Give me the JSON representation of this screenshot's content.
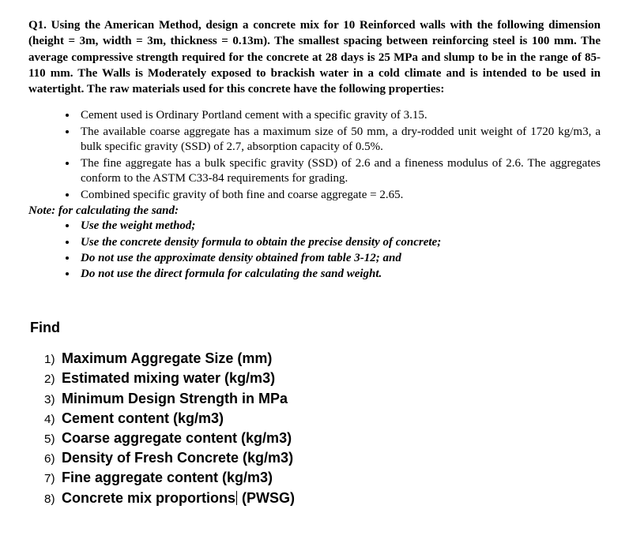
{
  "colors": {
    "background": "#ffffff",
    "text": "#000000"
  },
  "question": {
    "text": "Q1. Using the American Method, design a concrete mix for 10 Reinforced walls with the following dimension (height = 3m, width = 3m, thickness = 0.13m). The smallest spacing between reinforcing steel is 100 mm. The average compressive strength required for the concrete at 28 days is 25 MPa and slump to be in the range of 85-110 mm. The Walls is Moderately exposed to brackish water in a cold climate and is intended to be used in watertight. The raw materials used for this concrete have the following properties:"
  },
  "properties": [
    "Cement used is Ordinary Portland cement with a specific gravity of 3.15.",
    "The available coarse aggregate has a maximum size of 50 mm, a dry-rodded unit weight of 1720 kg/m3, a bulk specific gravity (SSD) of 2.7, absorption capacity of 0.5%.",
    "The fine aggregate has a bulk specific gravity (SSD) of 2.6 and a fineness modulus of 2.6. The aggregates conform to the ASTM C33-84 requirements for grading.",
    "Combined specific gravity of both fine and coarse aggregate = 2.65."
  ],
  "note_label": "Note: for calculating the sand:",
  "notes": [
    "Use the weight method;",
    "Use the concrete density formula to obtain the precise density of concrete;",
    "Do not use the approximate density obtained from table 3-12; and",
    "Do not use the direct formula for calculating the sand weight."
  ],
  "find": {
    "title": "Find",
    "items": [
      {
        "n": "1)",
        "label": "Maximum Aggregate Size (mm)"
      },
      {
        "n": "2)",
        "label": "Estimated mixing water (kg/m3)"
      },
      {
        "n": "3)",
        "label": "Minimum Design Strength in MPa"
      },
      {
        "n": "4)",
        "label": "Cement content (kg/m3)"
      },
      {
        "n": "5)",
        "label": "Coarse aggregate content (kg/m3)"
      },
      {
        "n": "6)",
        "label": "Density of Fresh Concrete (kg/m3)"
      },
      {
        "n": "7)",
        "label": "Fine aggregate content (kg/m3)"
      },
      {
        "n": "8)",
        "label_a": "Concrete mix proportions",
        "cursor": true,
        "label_b": " (PWSG)"
      }
    ]
  }
}
